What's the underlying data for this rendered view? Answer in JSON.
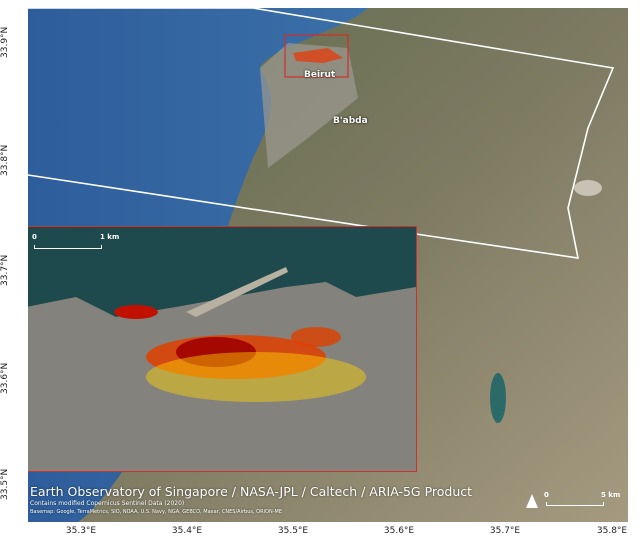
{
  "title": "Earth Observatory of Singapore / NASA-JPL / Caltech / ARIA-5G Product",
  "credits": [
    "Contains modified Copernicus Sentinel Data (2020)",
    "Basemap: Google, TerraMetrics, SIO, NOAA, U.S. Navy, NGA, GEBCO, Maxar, CNES/Airbus, ORION-ME"
  ],
  "places": {
    "city": "Beirut",
    "district": "B'abda"
  },
  "axes": {
    "latitude_labels": [
      "33.9°N",
      "33.8°N",
      "33.7°N",
      "33.6°N",
      "33.5°N"
    ],
    "longitude_labels": [
      "35.3°E",
      "35.4°E",
      "35.5°E",
      "35.6°E",
      "35.7°E",
      "35.8°E"
    ]
  },
  "scalebar_main": {
    "start": "0",
    "end": "5 km"
  },
  "scalebar_inset": {
    "start": "0",
    "end": "1 km"
  },
  "north_arrow": "north-arrow-icon",
  "colors": {
    "inset_border": "#d0302a",
    "aoi_outline": "#ffffff",
    "damage_high": "#a00000",
    "damage_mid": "#e03000",
    "damage_low": "#ffd700",
    "sea": "#2c5d9a"
  }
}
